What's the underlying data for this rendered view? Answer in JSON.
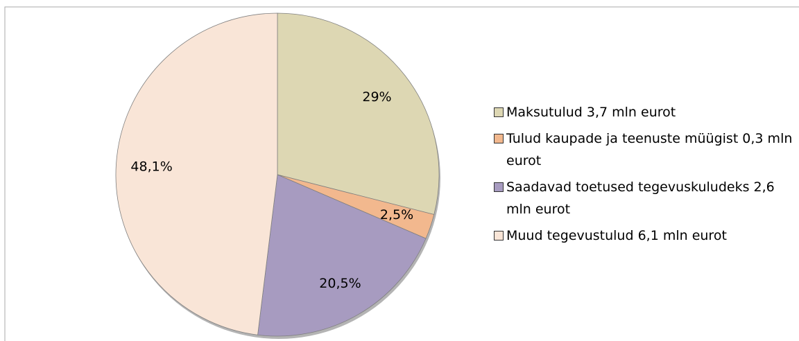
{
  "chart_data": {
    "type": "pie",
    "categories": [
      "Maksutulud 3,7 mln eurot",
      "Tulud kaupade ja teenuste müügist 0,3 mln eurot",
      "Saadavad toetused tegevuskuludeks 2,6 mln eurot",
      "Muud tegevustulud 6,1 mln eurot"
    ],
    "values": [
      29,
      2.5,
      20.5,
      48.1
    ],
    "value_labels": [
      "29%",
      "2,5%",
      "20,5%",
      "48,1%"
    ],
    "colors": [
      "#ddd7b3",
      "#f2b88e",
      "#a79bc0",
      "#f9e5d7"
    ],
    "legend": "right"
  }
}
